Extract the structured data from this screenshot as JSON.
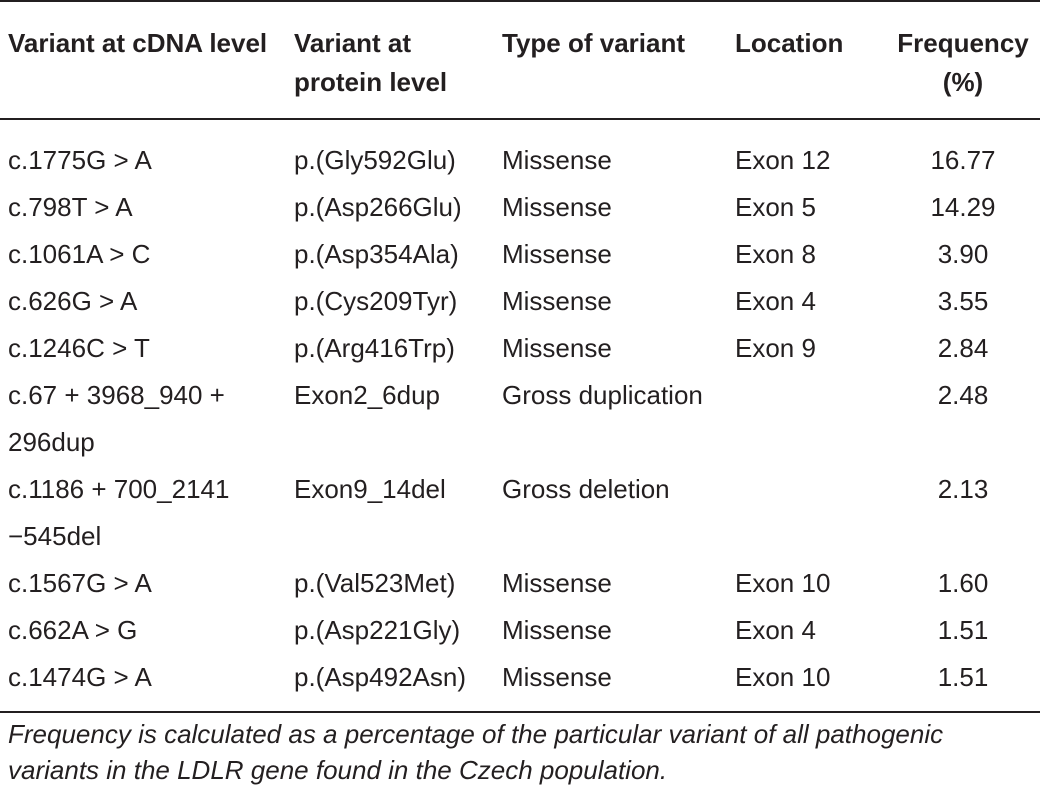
{
  "table": {
    "headers": [
      "Variant at cDNA level",
      "Variant at protein level",
      "Type of variant",
      "Location",
      "Frequency (%)"
    ],
    "rows": [
      [
        "c.1775G > A",
        "p.(Gly592Glu)",
        "Missense",
        "Exon 12",
        "16.77"
      ],
      [
        "c.798T > A",
        "p.(Asp266Glu)",
        "Missense",
        "Exon 5",
        "14.29"
      ],
      [
        "c.1061A > C",
        "p.(Asp354Ala)",
        "Missense",
        "Exon 8",
        "3.90"
      ],
      [
        "c.626G > A",
        "p.(Cys209Tyr)",
        "Missense",
        "Exon 4",
        "3.55"
      ],
      [
        "c.1246C > T",
        "p.(Arg416Trp)",
        "Missense",
        "Exon 9",
        "2.84"
      ],
      [
        "c.67 + 3968_940 + 296dup",
        "Exon2_6dup",
        "Gross duplication",
        "",
        "2.48"
      ],
      [
        "c.1186 + 700_2141 −545del",
        "Exon9_14del",
        "Gross deletion",
        "",
        "2.13"
      ],
      [
        "c.1567G > A",
        "p.(Val523Met)",
        "Missense",
        "Exon 10",
        "1.60"
      ],
      [
        "c.662A > G",
        "p.(Asp221Gly)",
        "Missense",
        "Exon 4",
        "1.51"
      ],
      [
        "c.1474G > A",
        "p.(Asp492Asn)",
        "Missense",
        "Exon 10",
        "1.51"
      ]
    ]
  },
  "footnote": "Frequency is calculated as a percentage of the particular variant of all pathogenic variants in the LDLR gene found in the Czech population."
}
